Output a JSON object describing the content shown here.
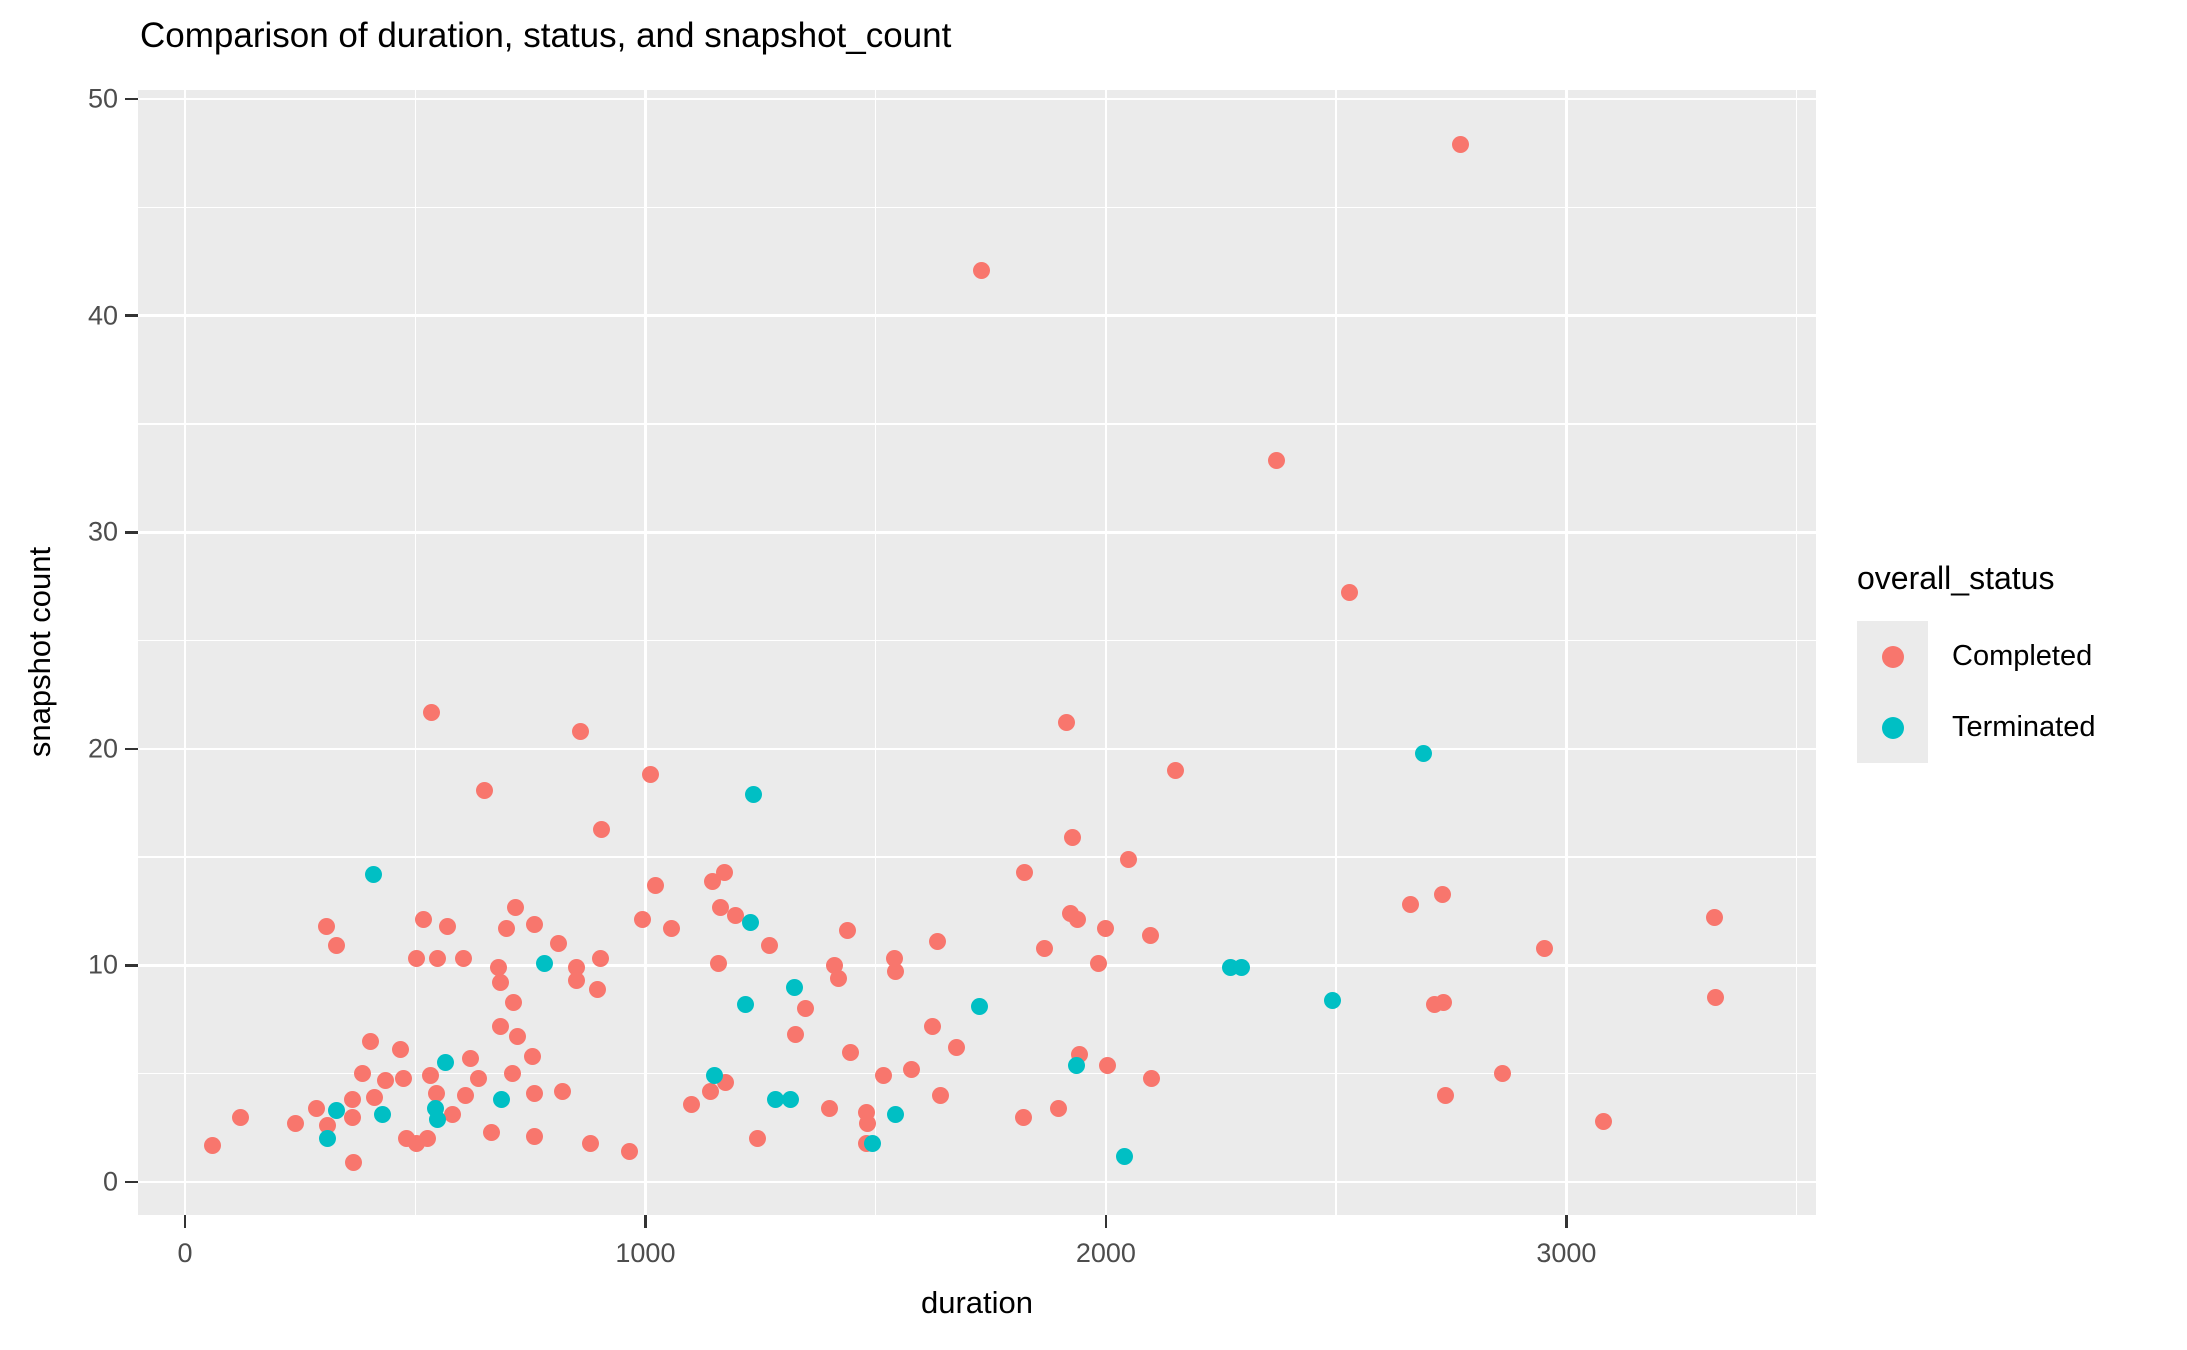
{
  "chart_data": {
    "type": "scatter",
    "title": "Comparison of duration, status, and snapshot_count",
    "xlabel": "duration",
    "ylabel": "snapshot count",
    "panel_bg": "#EBEBEB",
    "grid": true,
    "x_domain": [
      -102,
      3542
    ],
    "y_domain": [
      -1.52,
      50.42
    ],
    "x_ticks": [
      0,
      1000,
      2000,
      3000
    ],
    "x_minor_ticks": [
      500,
      1500,
      2500,
      3500
    ],
    "y_ticks": [
      0,
      10,
      20,
      30,
      40,
      50
    ],
    "y_minor_ticks": [
      5,
      15,
      25,
      35,
      45
    ],
    "legend": {
      "title": "overall_status",
      "position": "right",
      "entries": [
        {
          "label": "Completed",
          "color": "#F8766D"
        },
        {
          "label": "Terminated",
          "color": "#00BFC4"
        }
      ]
    },
    "series": [
      {
        "name": "Completed",
        "color": "#F8766D",
        "points": [
          [
            60,
            1.7
          ],
          [
            120,
            3
          ],
          [
            240,
            2.7
          ],
          [
            285,
            3.4
          ],
          [
            307,
            11.8
          ],
          [
            309,
            2.6
          ],
          [
            328,
            10.9
          ],
          [
            363,
            3.8
          ],
          [
            363,
            3
          ],
          [
            365,
            0.9
          ],
          [
            385,
            5
          ],
          [
            402,
            6.5
          ],
          [
            411,
            3.9
          ],
          [
            435,
            4.7
          ],
          [
            467,
            6.1
          ],
          [
            474,
            4.8
          ],
          [
            480,
            2
          ],
          [
            502,
            1.8
          ],
          [
            502,
            10.3
          ],
          [
            517,
            12.1
          ],
          [
            526,
            2
          ],
          [
            533,
            4.9
          ],
          [
            535,
            21.7
          ],
          [
            546,
            4.1
          ],
          [
            548,
            10.3
          ],
          [
            570,
            11.8
          ],
          [
            580,
            3.1
          ],
          [
            604,
            10.3
          ],
          [
            609,
            4
          ],
          [
            620,
            5.7
          ],
          [
            637,
            4.8
          ],
          [
            650,
            18.1
          ],
          [
            665,
            2.3
          ],
          [
            680,
            9.9
          ],
          [
            685,
            9.2
          ],
          [
            685,
            7.2
          ],
          [
            698,
            11.7
          ],
          [
            711,
            5
          ],
          [
            713,
            8.3
          ],
          [
            717,
            12.7
          ],
          [
            722,
            6.7
          ],
          [
            754,
            5.8
          ],
          [
            759,
            11.9
          ],
          [
            759,
            4.1
          ],
          [
            760,
            2.1
          ],
          [
            812,
            11
          ],
          [
            820,
            4.2
          ],
          [
            850,
            9.9
          ],
          [
            850,
            9.3
          ],
          [
            860,
            20.8
          ],
          [
            880,
            1.8
          ],
          [
            896,
            8.9
          ],
          [
            902,
            10.3
          ],
          [
            905,
            16.3
          ],
          [
            965,
            1.4
          ],
          [
            993,
            12.1
          ],
          [
            1010,
            18.8
          ],
          [
            1022,
            13.7
          ],
          [
            1057,
            11.7
          ],
          [
            1100,
            3.6
          ],
          [
            1141,
            4.2
          ],
          [
            1146,
            13.9
          ],
          [
            1159,
            10.1
          ],
          [
            1163,
            12.7
          ],
          [
            1172,
            14.3
          ],
          [
            1174,
            4.6
          ],
          [
            1196,
            12.3
          ],
          [
            1243,
            2
          ],
          [
            1270,
            10.9
          ],
          [
            1326,
            6.8
          ],
          [
            1348,
            8
          ],
          [
            1400,
            3.4
          ],
          [
            1411,
            10
          ],
          [
            1420,
            9.4
          ],
          [
            1439,
            11.6
          ],
          [
            1445,
            6
          ],
          [
            1480,
            3.2
          ],
          [
            1483,
            2.7
          ],
          [
            1480,
            1.8
          ],
          [
            1518,
            4.9
          ],
          [
            1541,
            10.3
          ],
          [
            1543,
            9.7
          ],
          [
            1578,
            5.2
          ],
          [
            1624,
            7.2
          ],
          [
            1635,
            11.1
          ],
          [
            1640,
            4
          ],
          [
            1675,
            6.2
          ],
          [
            1730,
            42.1
          ],
          [
            1820,
            3
          ],
          [
            1824,
            14.3
          ],
          [
            1867,
            10.8
          ],
          [
            1898,
            3.4
          ],
          [
            1915,
            21.2
          ],
          [
            1928,
            15.9
          ],
          [
            1924,
            12.4
          ],
          [
            1939,
            12.1
          ],
          [
            1943,
            5.9
          ],
          [
            1983,
            10.1
          ],
          [
            2000,
            11.7
          ],
          [
            2004,
            5.4
          ],
          [
            2048,
            14.9
          ],
          [
            2096,
            11.4
          ],
          [
            2100,
            4.8
          ],
          [
            2150,
            19
          ],
          [
            2370,
            33.3
          ],
          [
            2530,
            27.2
          ],
          [
            2661,
            12.8
          ],
          [
            2713,
            8.2
          ],
          [
            2730,
            13.3
          ],
          [
            2733,
            8.3
          ],
          [
            2737,
            4
          ],
          [
            2770,
            47.9
          ],
          [
            2861,
            5
          ],
          [
            2952,
            10.8
          ],
          [
            3080,
            2.8
          ],
          [
            3322,
            12.2
          ],
          [
            3324,
            8.5
          ]
        ]
      },
      {
        "name": "Terminated",
        "color": "#00BFC4",
        "points": [
          [
            310,
            2
          ],
          [
            330,
            3.3
          ],
          [
            410,
            14.2
          ],
          [
            428,
            3.1
          ],
          [
            545,
            3.4
          ],
          [
            548,
            2.9
          ],
          [
            565,
            5.5
          ],
          [
            687,
            3.8
          ],
          [
            780,
            10.1
          ],
          [
            1150,
            4.9
          ],
          [
            1217,
            8.2
          ],
          [
            1228,
            12
          ],
          [
            1235,
            17.9
          ],
          [
            1283,
            3.8
          ],
          [
            1315,
            3.8
          ],
          [
            1324,
            9
          ],
          [
            1493,
            1.8
          ],
          [
            1543,
            3.1
          ],
          [
            1725,
            8.1
          ],
          [
            1935,
            5.4
          ],
          [
            2041,
            1.2
          ],
          [
            2270,
            9.9
          ],
          [
            2295,
            9.9
          ],
          [
            2491,
            8.4
          ],
          [
            2690,
            19.8
          ]
        ]
      }
    ]
  }
}
